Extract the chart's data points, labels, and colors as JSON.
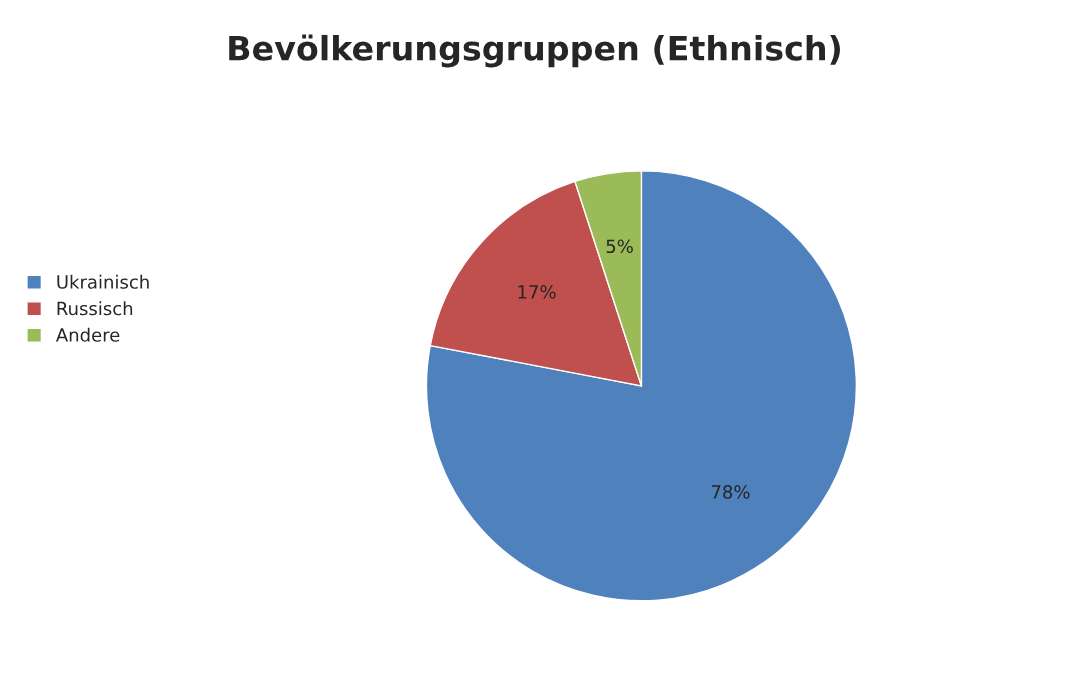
{
  "chart_data": {
    "type": "pie",
    "title": "Bevölkerungsgruppen (Ethnisch)",
    "categories": [
      "Ukrainisch",
      "Russisch",
      "Andere"
    ],
    "values": [
      78,
      17,
      5
    ],
    "colors": [
      "#4f81bd",
      "#c0504d",
      "#9bbb59"
    ],
    "value_labels": [
      "78%",
      "17%",
      "5%"
    ],
    "legend": "left"
  }
}
